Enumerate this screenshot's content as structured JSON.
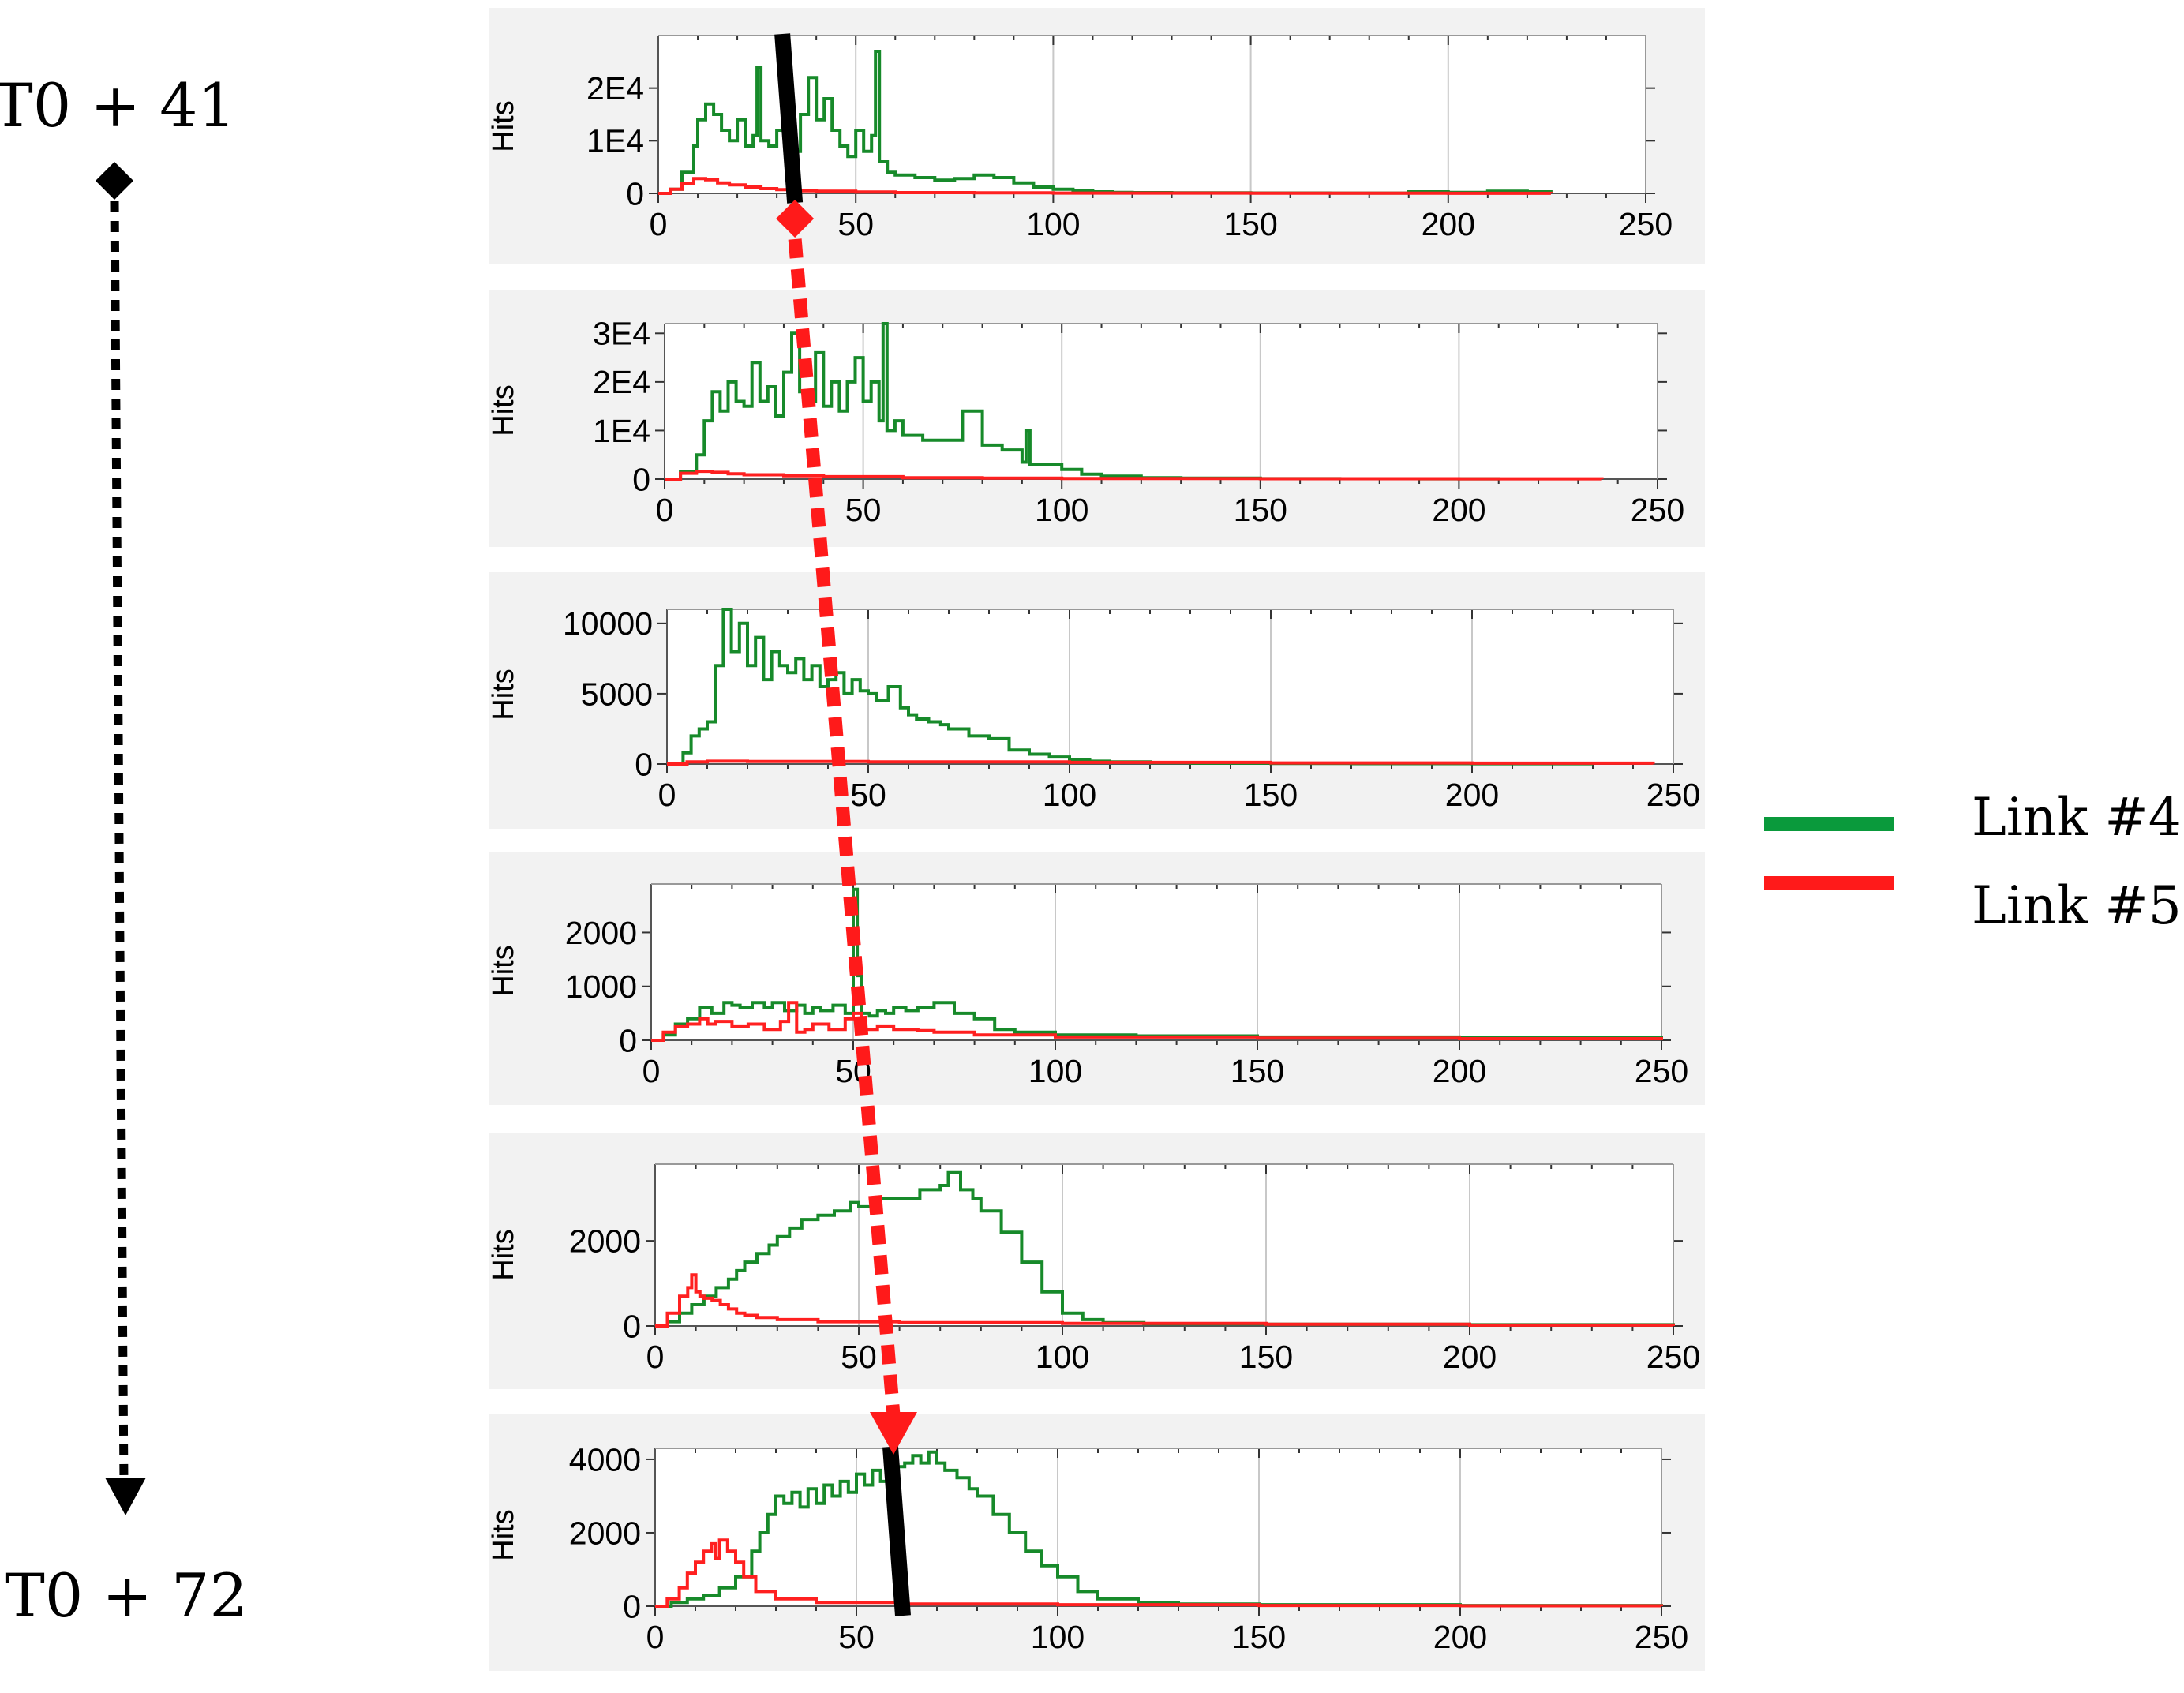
{
  "time_start_label": "T0 + 41",
  "time_end_label": "T0 + 72",
  "legend": {
    "items": [
      {
        "label": "Link #4",
        "color": "#0a9a3c"
      },
      {
        "label": "Link #5",
        "color": "#ff1a1a"
      }
    ]
  },
  "colors": {
    "link4": "#178a2a",
    "link5": "#ff2020",
    "arrow": "#ff1a1a",
    "marker": "#000000",
    "panel_bg": "#f2f2f2",
    "grid": "#c8c8c8"
  },
  "chart_data": [
    {
      "type": "line",
      "ylabel": "Hits",
      "xlim": [
        0,
        250
      ],
      "xticks": [
        "0",
        "50",
        "100",
        "150",
        "200",
        "250"
      ],
      "ylim": [
        0,
        30000
      ],
      "yticks": [
        {
          "value": 0,
          "label": "0"
        },
        {
          "value": 10000,
          "label": "1E4"
        },
        {
          "value": 20000,
          "label": "2E4"
        }
      ],
      "marker_x": 33,
      "series": [
        {
          "name": "Link #4",
          "color_key": "link4",
          "x": [
            0,
            3,
            6,
            9,
            10,
            12,
            14,
            16,
            18,
            20,
            22,
            24,
            25,
            26,
            28,
            30,
            32,
            34,
            36,
            38,
            40,
            42,
            44,
            46,
            48,
            50,
            52,
            54,
            55,
            56,
            58,
            60,
            65,
            70,
            75,
            80,
            85,
            90,
            95,
            100,
            105,
            110,
            115,
            120,
            130,
            150,
            170,
            190,
            200,
            210,
            220,
            226
          ],
          "y": [
            0,
            800,
            4000,
            9000,
            14000,
            17000,
            15000,
            12000,
            10000,
            14000,
            9000,
            11000,
            24000,
            10000,
            9000,
            12000,
            10000,
            8000,
            15000,
            22000,
            14000,
            18000,
            12000,
            9000,
            7000,
            12000,
            8000,
            11000,
            27000,
            6000,
            4000,
            3500,
            3000,
            2500,
            2800,
            3500,
            3000,
            2000,
            1200,
            800,
            500,
            300,
            200,
            150,
            120,
            80,
            60,
            300,
            200,
            400,
            300,
            0
          ]
        },
        {
          "name": "Link #5",
          "color_key": "link5",
          "x": [
            0,
            3,
            6,
            9,
            12,
            15,
            18,
            22,
            26,
            30,
            35,
            40,
            50,
            60,
            80,
            100,
            150,
            200,
            226
          ],
          "y": [
            0,
            800,
            1800,
            2800,
            2600,
            2000,
            1600,
            1200,
            900,
            700,
            500,
            400,
            250,
            150,
            100,
            60,
            30,
            20,
            0
          ]
        }
      ]
    },
    {
      "type": "line",
      "ylabel": "Hits",
      "xlim": [
        0,
        250
      ],
      "xticks": [
        "0",
        "50",
        "100",
        "150",
        "200",
        "250"
      ],
      "ylim": [
        0,
        32000
      ],
      "yticks": [
        {
          "value": 0,
          "label": "0"
        },
        {
          "value": 10000,
          "label": "1E4"
        },
        {
          "value": 20000,
          "label": "2E4"
        },
        {
          "value": 30000,
          "label": "3E4"
        }
      ],
      "series": [
        {
          "name": "Link #4",
          "color_key": "link4",
          "x": [
            0,
            4,
            8,
            10,
            12,
            14,
            16,
            18,
            20,
            22,
            24,
            26,
            28,
            30,
            32,
            34,
            36,
            38,
            40,
            42,
            44,
            46,
            48,
            50,
            52,
            54,
            55,
            56,
            58,
            60,
            65,
            70,
            75,
            80,
            85,
            90,
            91,
            92,
            95,
            100,
            105,
            110,
            120,
            130,
            150,
            170,
            190,
            210
          ],
          "y": [
            0,
            1500,
            5000,
            12000,
            18000,
            14000,
            20000,
            16000,
            15000,
            24000,
            16000,
            19000,
            13000,
            22000,
            30000,
            18000,
            16000,
            26000,
            15000,
            20000,
            14000,
            20000,
            25000,
            16000,
            20000,
            12000,
            32000,
            10000,
            12000,
            9000,
            8000,
            8000,
            14000,
            7000,
            6000,
            3500,
            10000,
            3000,
            3000,
            2000,
            1000,
            600,
            300,
            200,
            100,
            80,
            60,
            40
          ]
        },
        {
          "name": "Link #5",
          "color_key": "link5",
          "x": [
            0,
            4,
            8,
            12,
            16,
            20,
            30,
            40,
            60,
            80,
            100,
            150,
            200,
            236
          ],
          "y": [
            0,
            1200,
            1600,
            1400,
            1100,
            900,
            700,
            500,
            300,
            200,
            120,
            80,
            60,
            0
          ]
        }
      ]
    },
    {
      "type": "line",
      "ylabel": "Hits",
      "xlim": [
        0,
        250
      ],
      "xticks": [
        "0",
        "50",
        "100",
        "150",
        "200",
        "250"
      ],
      "ylim": [
        0,
        11000
      ],
      "yticks": [
        {
          "value": 0,
          "label": "0"
        },
        {
          "value": 5000,
          "label": "5000"
        },
        {
          "value": 10000,
          "label": "10000"
        }
      ],
      "series": [
        {
          "name": "Link #4",
          "color_key": "link4",
          "x": [
            0,
            4,
            6,
            8,
            10,
            12,
            14,
            16,
            18,
            20,
            22,
            24,
            26,
            28,
            30,
            32,
            34,
            36,
            38,
            40,
            42,
            44,
            46,
            48,
            50,
            52,
            55,
            58,
            60,
            62,
            65,
            68,
            70,
            75,
            80,
            85,
            90,
            95,
            100,
            105,
            110,
            120,
            130,
            150,
            170,
            200,
            230
          ],
          "y": [
            0,
            800,
            2000,
            2500,
            3000,
            7000,
            11000,
            8000,
            10000,
            7000,
            9000,
            6000,
            8000,
            7000,
            6500,
            7500,
            6000,
            7000,
            5500,
            6000,
            6500,
            5000,
            6000,
            5200,
            5000,
            4500,
            5500,
            4000,
            3500,
            3200,
            3000,
            2800,
            2500,
            2000,
            1800,
            1000,
            700,
            500,
            300,
            200,
            150,
            100,
            60,
            40,
            30,
            20,
            10
          ]
        },
        {
          "name": "Link #5",
          "color_key": "link5",
          "x": [
            0,
            5,
            10,
            20,
            50,
            100,
            150,
            200,
            245
          ],
          "y": [
            0,
            150,
            200,
            180,
            150,
            120,
            80,
            60,
            0
          ]
        }
      ]
    },
    {
      "type": "line",
      "ylabel": "Hits",
      "xlim": [
        0,
        250
      ],
      "xticks": [
        "0",
        "50",
        "100",
        "150",
        "200",
        "250"
      ],
      "ylim": [
        0,
        2900
      ],
      "yticks": [
        {
          "value": 0,
          "label": "0"
        },
        {
          "value": 1000,
          "label": "1000"
        },
        {
          "value": 2000,
          "label": "2000"
        }
      ],
      "series": [
        {
          "name": "Link #4",
          "color_key": "link4",
          "x": [
            0,
            3,
            6,
            9,
            12,
            15,
            18,
            20,
            22,
            25,
            28,
            30,
            33,
            36,
            38,
            40,
            42,
            45,
            48,
            50,
            51,
            52,
            54,
            56,
            58,
            60,
            63,
            66,
            70,
            75,
            80,
            85,
            90,
            100,
            120,
            150,
            200,
            250
          ],
          "y": [
            0,
            100,
            300,
            400,
            600,
            500,
            700,
            650,
            600,
            700,
            600,
            700,
            550,
            650,
            500,
            600,
            550,
            650,
            500,
            2800,
            1200,
            500,
            450,
            550,
            500,
            600,
            550,
            600,
            700,
            500,
            400,
            200,
            150,
            100,
            80,
            60,
            50,
            0
          ]
        },
        {
          "name": "Link #5",
          "color_key": "link5",
          "x": [
            0,
            3,
            6,
            9,
            12,
            14,
            16,
            20,
            24,
            28,
            32,
            34,
            36,
            38,
            40,
            44,
            48,
            50,
            52,
            56,
            60,
            66,
            70,
            80,
            100,
            150,
            200,
            250
          ],
          "y": [
            0,
            150,
            250,
            300,
            400,
            300,
            350,
            250,
            300,
            200,
            350,
            700,
            150,
            200,
            300,
            200,
            400,
            500,
            200,
            250,
            200,
            180,
            150,
            100,
            60,
            40,
            30,
            0
          ]
        }
      ]
    },
    {
      "type": "line",
      "ylabel": "Hits",
      "xlim": [
        0,
        250
      ],
      "xticks": [
        "0",
        "50",
        "100",
        "150",
        "200",
        "250"
      ],
      "ylim": [
        0,
        3800
      ],
      "yticks": [
        {
          "value": 0,
          "label": "0"
        },
        {
          "value": 2000,
          "label": "2000"
        }
      ],
      "series": [
        {
          "name": "Link #4",
          "color_key": "link4",
          "x": [
            0,
            3,
            6,
            9,
            12,
            15,
            18,
            20,
            22,
            25,
            28,
            30,
            33,
            36,
            40,
            44,
            48,
            50,
            55,
            60,
            65,
            70,
            72,
            75,
            78,
            80,
            85,
            90,
            95,
            100,
            105,
            110,
            120,
            150,
            200,
            250
          ],
          "y": [
            0,
            100,
            300,
            500,
            700,
            900,
            1100,
            1300,
            1500,
            1700,
            1900,
            2100,
            2300,
            2500,
            2600,
            2700,
            2900,
            2800,
            3000,
            3000,
            3200,
            3300,
            3600,
            3200,
            3000,
            2700,
            2200,
            1500,
            800,
            300,
            150,
            80,
            50,
            40,
            30,
            0
          ]
        },
        {
          "name": "Link #5",
          "color_key": "link5",
          "x": [
            0,
            3,
            6,
            8,
            9,
            10,
            11,
            12,
            14,
            16,
            18,
            20,
            22,
            25,
            30,
            40,
            60,
            100,
            150,
            200,
            250
          ],
          "y": [
            0,
            300,
            700,
            900,
            1200,
            800,
            700,
            650,
            600,
            500,
            400,
            300,
            250,
            200,
            150,
            100,
            80,
            60,
            40,
            20,
            0
          ]
        }
      ]
    },
    {
      "type": "line",
      "ylabel": "Hits",
      "xlim": [
        0,
        250
      ],
      "xticks": [
        "0",
        "50",
        "100",
        "150",
        "200",
        "250"
      ],
      "ylim": [
        0,
        4300
      ],
      "yticks": [
        {
          "value": 0,
          "label": "0"
        },
        {
          "value": 2000,
          "label": "2000"
        },
        {
          "value": 4000,
          "label": "4000"
        }
      ],
      "marker_x": 60,
      "series": [
        {
          "name": "Link #4",
          "color_key": "link4",
          "x": [
            0,
            4,
            8,
            12,
            16,
            20,
            24,
            26,
            28,
            30,
            32,
            34,
            36,
            38,
            40,
            42,
            44,
            46,
            48,
            50,
            52,
            54,
            56,
            58,
            60,
            62,
            64,
            66,
            68,
            70,
            72,
            75,
            78,
            80,
            84,
            88,
            92,
            96,
            100,
            105,
            110,
            120,
            130,
            150,
            200,
            250
          ],
          "y": [
            0,
            100,
            200,
            300,
            500,
            800,
            1500,
            2000,
            2500,
            3000,
            2800,
            3100,
            2700,
            3200,
            2800,
            3300,
            3000,
            3400,
            3100,
            3600,
            3300,
            3700,
            3400,
            3600,
            3800,
            3900,
            4100,
            3900,
            4200,
            3900,
            3700,
            3500,
            3200,
            3000,
            2500,
            2000,
            1500,
            1100,
            800,
            400,
            200,
            100,
            60,
            40,
            20,
            0
          ]
        },
        {
          "name": "Link #5",
          "color_key": "link5",
          "x": [
            0,
            3,
            6,
            8,
            10,
            12,
            14,
            15,
            16,
            18,
            20,
            22,
            25,
            30,
            40,
            60,
            100,
            150,
            200,
            250
          ],
          "y": [
            0,
            200,
            500,
            900,
            1200,
            1500,
            1700,
            1300,
            1800,
            1500,
            1200,
            800,
            400,
            200,
            100,
            60,
            40,
            20,
            10,
            0
          ]
        }
      ]
    }
  ]
}
